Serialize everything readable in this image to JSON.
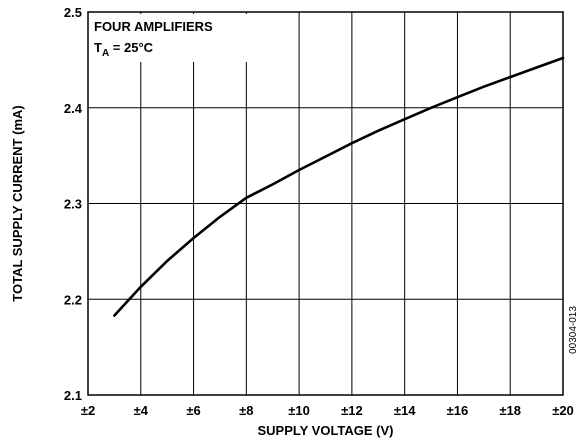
{
  "chart_data": {
    "type": "line",
    "xlabel": "SUPPLY VOLTAGE (V)",
    "ylabel": "TOTAL SUPPLY CURRENT (mA)",
    "xlim": [
      2,
      20
    ],
    "ylim": [
      2.1,
      2.5
    ],
    "x_ticks": [
      "±2",
      "±4",
      "±6",
      "±8",
      "±10",
      "±12",
      "±14",
      "±16",
      "±18",
      "±20"
    ],
    "y_ticks": [
      "2.1",
      "2.2",
      "2.3",
      "2.4",
      "2.5"
    ],
    "grid": true,
    "annotation": {
      "line1": "FOUR AMPLIFIERS",
      "line2_prefix": "T",
      "line2_sub": "A",
      "line2_suffix": " = 25°C"
    },
    "doc_id": "00304-013",
    "series": [
      {
        "x": [
          3,
          4,
          5,
          6,
          7,
          8,
          9,
          10,
          11,
          12,
          13,
          14,
          15,
          16,
          17,
          18,
          19,
          20
        ],
        "y": [
          2.183,
          2.213,
          2.24,
          2.264,
          2.286,
          2.306,
          2.32,
          2.335,
          2.349,
          2.363,
          2.376,
          2.388,
          2.4,
          2.411,
          2.422,
          2.432,
          2.442,
          2.452
        ]
      }
    ]
  }
}
